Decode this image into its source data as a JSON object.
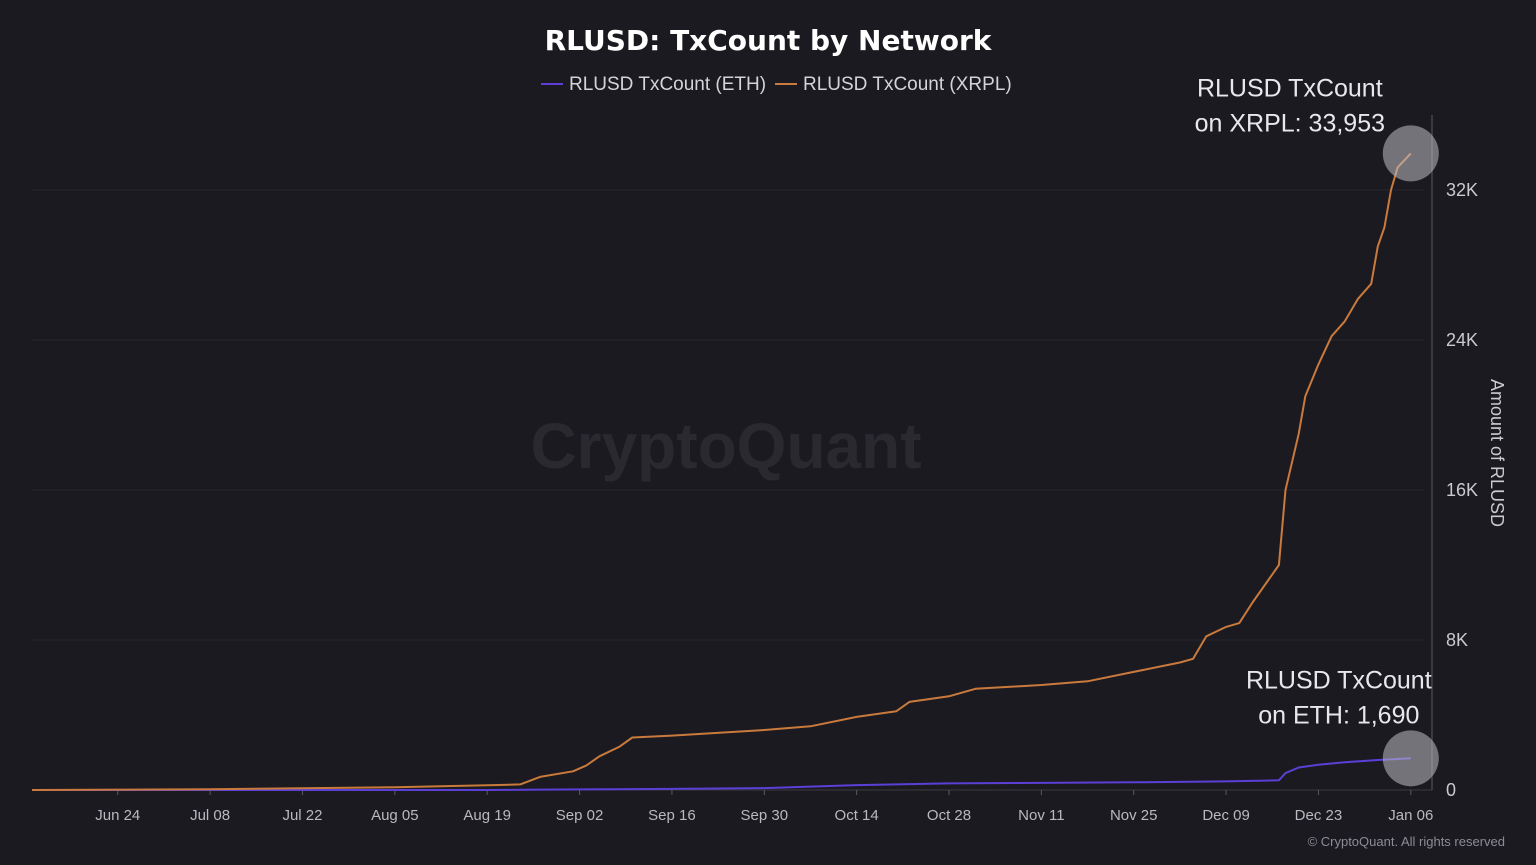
{
  "chart_data": {
    "type": "line",
    "title": "RLUSD: TxCount by Network",
    "ylabel": "Amount of RLUSD",
    "xlabel": "",
    "ylim": [
      0,
      36000
    ],
    "yticks": [
      0,
      8000,
      16000,
      24000,
      32000
    ],
    "ytick_labels": [
      "0",
      "8K",
      "16K",
      "24K",
      "32K"
    ],
    "xlim": [
      "2024-06-11",
      "2025-01-08"
    ],
    "xticks": [
      "2024-06-24",
      "2024-07-08",
      "2024-07-22",
      "2024-08-05",
      "2024-08-19",
      "2024-09-02",
      "2024-09-16",
      "2024-09-30",
      "2024-10-14",
      "2024-10-28",
      "2024-11-11",
      "2024-11-25",
      "2024-12-09",
      "2024-12-23",
      "2025-01-06"
    ],
    "xtick_labels": [
      "Jun 24",
      "Jul 08",
      "Jul 22",
      "Aug 05",
      "Aug 19",
      "Sep 02",
      "Sep 16",
      "Sep 30",
      "Oct 14",
      "Oct 28",
      "Nov 11",
      "Nov 25",
      "Dec 09",
      "Dec 23",
      "Jan 06"
    ],
    "grid": "horizontal",
    "legend_position": "top-center",
    "series": [
      {
        "name": "RLUSD TxCount (ETH)",
        "color": "#5b3fd6",
        "points": [
          [
            "2024-06-11",
            0
          ],
          [
            "2024-08-19",
            0
          ],
          [
            "2024-09-02",
            30
          ],
          [
            "2024-09-16",
            60
          ],
          [
            "2024-09-30",
            100
          ],
          [
            "2024-10-14",
            260
          ],
          [
            "2024-10-28",
            350
          ],
          [
            "2024-11-11",
            380
          ],
          [
            "2024-11-25",
            410
          ],
          [
            "2024-12-09",
            460
          ],
          [
            "2024-12-17",
            520
          ],
          [
            "2024-12-18",
            900
          ],
          [
            "2024-12-20",
            1200
          ],
          [
            "2024-12-23",
            1350
          ],
          [
            "2024-12-27",
            1480
          ],
          [
            "2025-01-01",
            1600
          ],
          [
            "2025-01-06",
            1690
          ]
        ]
      },
      {
        "name": "RLUSD TxCount (XRPL)",
        "color": "#c97a3c",
        "points": [
          [
            "2024-06-11",
            0
          ],
          [
            "2024-07-08",
            40
          ],
          [
            "2024-08-05",
            150
          ],
          [
            "2024-08-19",
            250
          ],
          [
            "2024-08-24",
            300
          ],
          [
            "2024-08-27",
            700
          ],
          [
            "2024-09-01",
            1000
          ],
          [
            "2024-09-03",
            1300
          ],
          [
            "2024-09-05",
            1800
          ],
          [
            "2024-09-08",
            2300
          ],
          [
            "2024-09-10",
            2800
          ],
          [
            "2024-09-16",
            2900
          ],
          [
            "2024-09-30",
            3200
          ],
          [
            "2024-10-07",
            3400
          ],
          [
            "2024-10-14",
            3900
          ],
          [
            "2024-10-20",
            4200
          ],
          [
            "2024-10-22",
            4700
          ],
          [
            "2024-10-28",
            5000
          ],
          [
            "2024-11-01",
            5400
          ],
          [
            "2024-11-11",
            5600
          ],
          [
            "2024-11-18",
            5800
          ],
          [
            "2024-11-25",
            6300
          ],
          [
            "2024-12-02",
            6800
          ],
          [
            "2024-12-04",
            7000
          ],
          [
            "2024-12-06",
            8200
          ],
          [
            "2024-12-09",
            8700
          ],
          [
            "2024-12-11",
            8900
          ],
          [
            "2024-12-13",
            10000
          ],
          [
            "2024-12-16",
            11500
          ],
          [
            "2024-12-17",
            12000
          ],
          [
            "2024-12-18",
            16000
          ],
          [
            "2024-12-20",
            19000
          ],
          [
            "2024-12-21",
            21000
          ],
          [
            "2024-12-23",
            22700
          ],
          [
            "2024-12-25",
            24200
          ],
          [
            "2024-12-27",
            25000
          ],
          [
            "2024-12-29",
            26200
          ],
          [
            "2024-12-31",
            27000
          ],
          [
            "2025-01-01",
            29000
          ],
          [
            "2025-01-02",
            30000
          ],
          [
            "2025-01-03",
            32000
          ],
          [
            "2025-01-04",
            33200
          ],
          [
            "2025-01-06",
            33953
          ]
        ]
      }
    ],
    "annotations": [
      {
        "lines": [
          "RLUSD TxCount",
          "on XRPL: 33,953"
        ],
        "series": "RLUSD TxCount (XRPL)",
        "x": "2025-01-06",
        "y": 33953
      },
      {
        "lines": [
          "RLUSD TxCount",
          "on ETH: 1,690"
        ],
        "series": "RLUSD TxCount (ETH)",
        "x": "2025-01-06",
        "y": 1690
      }
    ],
    "watermark": "CryptoQuant",
    "copyright": "© CryptoQuant. All rights reserved"
  }
}
